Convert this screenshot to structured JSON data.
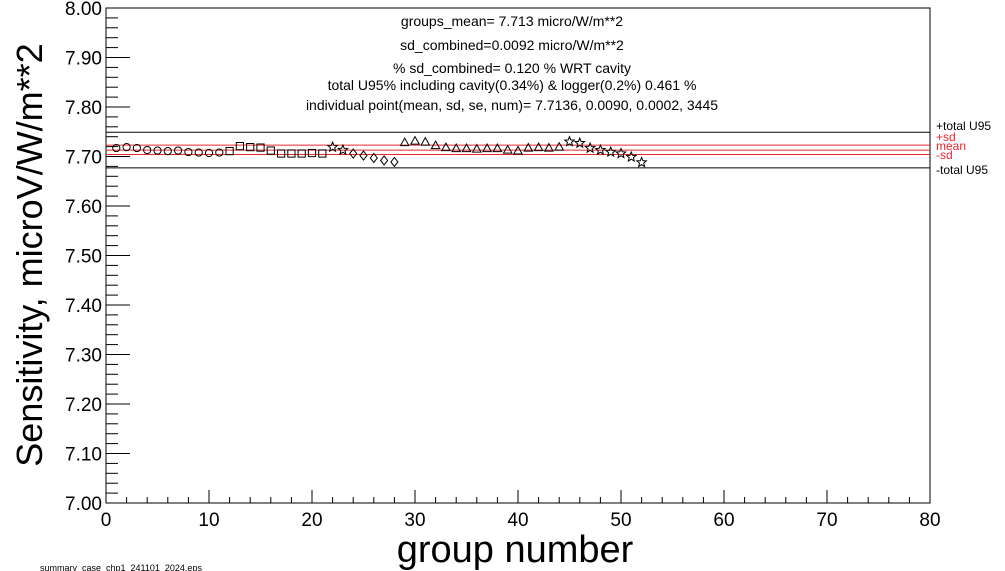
{
  "chart_data": {
    "type": "scatter",
    "title": "",
    "xlabel": "group number",
    "ylabel": "Sensitivity, microV/W/m**2",
    "xlim": [
      0,
      80
    ],
    "ylim": [
      7.0,
      8.0
    ],
    "x_ticks": [
      "0",
      "10",
      "20",
      "30",
      "40",
      "50",
      "60",
      "70",
      "80"
    ],
    "y_ticks": [
      "7.00",
      "7.10",
      "7.20",
      "7.30",
      "7.40",
      "7.50",
      "7.60",
      "7.70",
      "7.80",
      "7.90",
      "8.00"
    ],
    "grid": false,
    "annotations": [
      "groups_mean= 7.713 micro/W/m**2",
      "sd_combined=0.0092 micro/W/m**2",
      "% sd_combined= 0.120 % WRT cavity",
      "total U95% including cavity(0.34%) & logger(0.2%) 0.461 %",
      "individual point(mean, sd, se, num)=  7.7136,  0.0090,  0.0002,  3445"
    ],
    "reference_lines": [
      {
        "label": "+total U95",
        "y": 7.749,
        "color": "#000000"
      },
      {
        "label": "+sd",
        "y": 7.723,
        "color": "#e8262b"
      },
      {
        "label": "mean",
        "y": 7.713,
        "color": "#e8262b"
      },
      {
        "label": "-sd",
        "y": 7.704,
        "color": "#e8262b"
      },
      {
        "label": "-total U95",
        "y": 7.677,
        "color": "#000000"
      }
    ],
    "series": [
      {
        "marker": "circle",
        "x": [
          1,
          2,
          3,
          4,
          5,
          6,
          7,
          8,
          9,
          10,
          11
        ],
        "y": [
          7.717,
          7.719,
          7.717,
          7.713,
          7.712,
          7.711,
          7.712,
          7.709,
          7.708,
          7.707,
          7.708
        ]
      },
      {
        "marker": "square",
        "x": [
          12,
          13,
          14,
          15,
          16,
          17,
          18,
          19,
          20,
          21
        ],
        "y": [
          7.711,
          7.721,
          7.719,
          7.718,
          7.712,
          7.706,
          7.706,
          7.706,
          7.707,
          7.706
        ]
      },
      {
        "marker": "star",
        "x": [
          22,
          23
        ],
        "y": [
          7.719,
          7.713
        ]
      },
      {
        "marker": "diamond",
        "x": [
          24,
          25,
          26,
          27,
          28
        ],
        "y": [
          7.706,
          7.702,
          7.697,
          7.692,
          7.689
        ]
      },
      {
        "marker": "triangle",
        "x": [
          29,
          30,
          31,
          32,
          33,
          34,
          35,
          36,
          37,
          38,
          39,
          40,
          41,
          42,
          43,
          44
        ],
        "y": [
          7.728,
          7.731,
          7.729,
          7.722,
          7.718,
          7.716,
          7.716,
          7.715,
          7.716,
          7.716,
          7.713,
          7.711,
          7.717,
          7.718,
          7.717,
          7.719
        ]
      },
      {
        "marker": "star",
        "x": [
          45,
          46,
          47,
          48,
          49,
          50,
          51,
          52
        ],
        "y": [
          7.73,
          7.727,
          7.717,
          7.713,
          7.709,
          7.706,
          7.699,
          7.688
        ]
      }
    ]
  },
  "footer_text": "summary_case_chp1_241101_2024.eps"
}
